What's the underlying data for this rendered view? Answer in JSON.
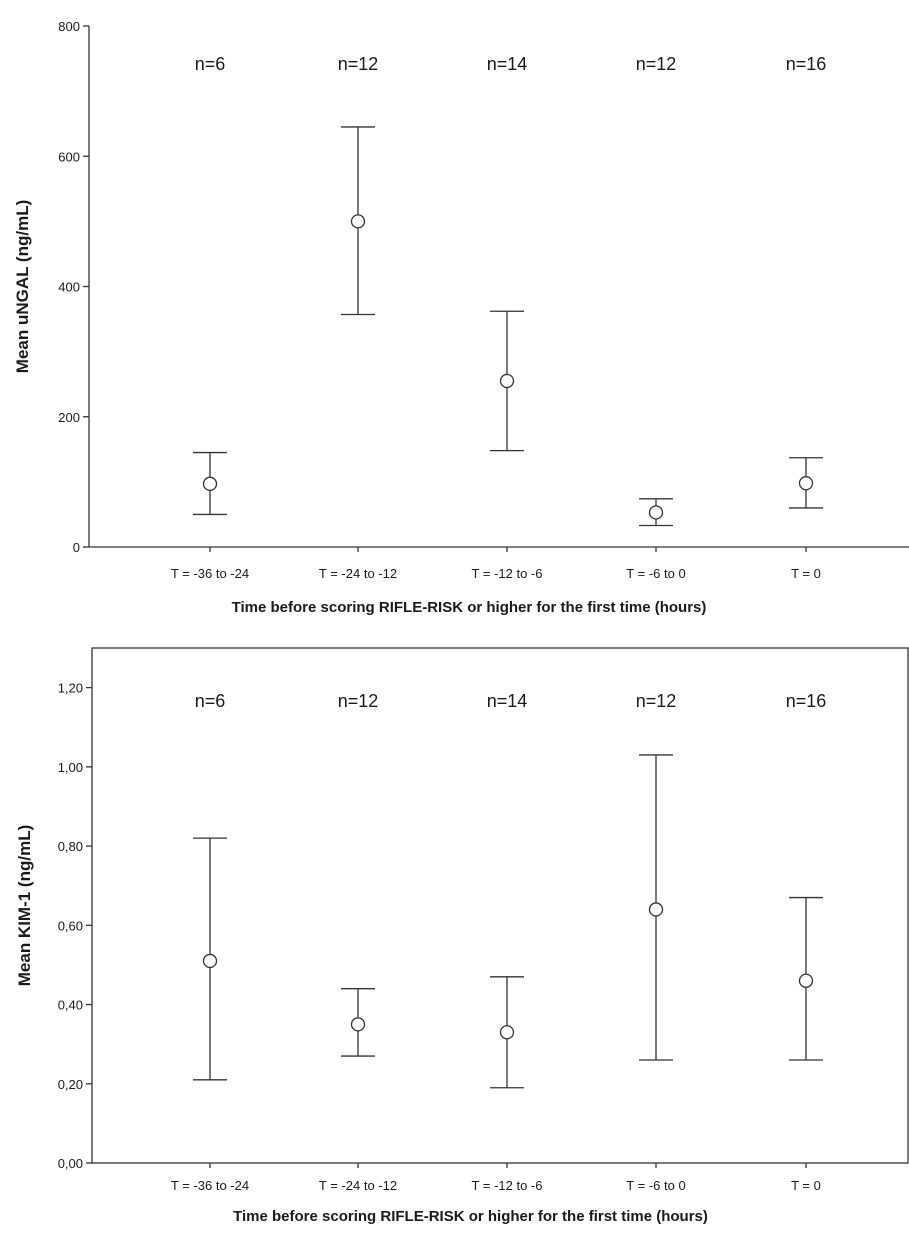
{
  "chart_data": [
    {
      "type": "scatter",
      "title": "",
      "xlabel": "Time before scoring RIFLE-RISK or higher for the first time (hours)",
      "ylabel": "Mean uNGAL (ng/mL)",
      "ylim": [
        0,
        800
      ],
      "yticks": [
        "0",
        "200",
        "400",
        "600",
        "800"
      ],
      "ytick_values": [
        0,
        200,
        400,
        600,
        800
      ],
      "categories": [
        "T = -36 to -24",
        "T = -24 to -12",
        "T = -12 to -6",
        "T = -6 to 0",
        "T = 0"
      ],
      "annotations": [
        "n=6",
        "n=12",
        "n=14",
        "n=12",
        "n=16"
      ],
      "values": [
        97,
        500,
        255,
        53,
        98
      ],
      "error_low": [
        50,
        357,
        148,
        33,
        60
      ],
      "error_high": [
        145,
        645,
        362,
        74,
        137
      ],
      "grid": false,
      "box": "open-top-right"
    },
    {
      "type": "scatter",
      "title": "",
      "xlabel": "Time before scoring RIFLE-RISK or higher for the first time (hours)",
      "ylabel": "Mean KIM-1 (ng/mL)",
      "ylim": [
        0,
        1.3
      ],
      "yticks": [
        "0,00",
        "0,20",
        "0,40",
        "0,60",
        "0,80",
        "1,00",
        "1,20"
      ],
      "ytick_values": [
        0,
        0.2,
        0.4,
        0.6,
        0.8,
        1.0,
        1.2
      ],
      "categories": [
        "T = -36 to -24",
        "T = -24 to -12",
        "T = -12 to -6",
        "T = -6 to 0",
        "T = 0"
      ],
      "annotations": [
        "n=6",
        "n=12",
        "n=14",
        "n=12",
        "n=16"
      ],
      "values": [
        0.51,
        0.35,
        0.33,
        0.64,
        0.46
      ],
      "error_low": [
        0.21,
        0.27,
        0.19,
        0.26,
        0.26
      ],
      "error_high": [
        0.82,
        0.44,
        0.47,
        1.03,
        0.67
      ],
      "grid": false,
      "box": "closed"
    }
  ]
}
